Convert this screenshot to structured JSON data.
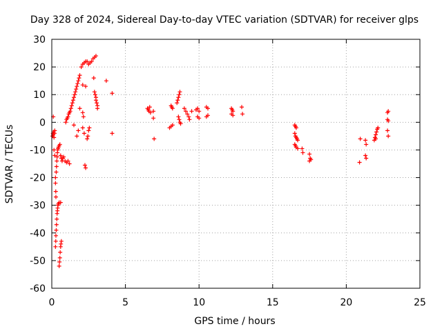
{
  "chart_data": {
    "type": "scatter",
    "title": "Day 328 of 2024, Sidereal Day-to-day VTEC variation (SDTVAR) for receiver glps",
    "xlabel": "GPS time / hours",
    "ylabel": "SDTVAR / TECUs",
    "xlim": [
      0,
      25
    ],
    "ylim": [
      -60,
      30
    ],
    "xticks": [
      0,
      5,
      10,
      15,
      20,
      25
    ],
    "yticks": [
      -60,
      -50,
      -40,
      -30,
      -20,
      -10,
      0,
      10,
      20,
      30
    ],
    "grid": true,
    "marker": "+",
    "color": "#ff0000",
    "series": [
      {
        "name": "SDTVAR",
        "points": [
          [
            0.05,
            -5
          ],
          [
            0.08,
            -4
          ],
          [
            0.1,
            -4.5
          ],
          [
            0.12,
            -3.5
          ],
          [
            0.15,
            -5.5
          ],
          [
            0.18,
            -4
          ],
          [
            0.2,
            -3
          ],
          [
            0.1,
            2
          ],
          [
            0.15,
            -10
          ],
          [
            0.2,
            -12
          ],
          [
            0.25,
            -22
          ],
          [
            0.27,
            -25
          ],
          [
            0.28,
            -27
          ],
          [
            0.25,
            -20
          ],
          [
            0.3,
            -18
          ],
          [
            0.32,
            -16
          ],
          [
            0.34,
            -14
          ],
          [
            0.36,
            -12.5
          ],
          [
            0.38,
            -11
          ],
          [
            0.4,
            -10
          ],
          [
            0.42,
            -9.5
          ],
          [
            0.45,
            -9
          ],
          [
            0.5,
            -8.5
          ],
          [
            0.55,
            -8
          ],
          [
            0.25,
            -45
          ],
          [
            0.27,
            -43
          ],
          [
            0.28,
            -41
          ],
          [
            0.3,
            -39
          ],
          [
            0.32,
            -37
          ],
          [
            0.34,
            -35
          ],
          [
            0.36,
            -33
          ],
          [
            0.38,
            -32
          ],
          [
            0.4,
            -31
          ],
          [
            0.42,
            -30
          ],
          [
            0.45,
            -29.5
          ],
          [
            0.5,
            -29
          ],
          [
            0.6,
            -29
          ],
          [
            0.5,
            -52
          ],
          [
            0.52,
            -50.5
          ],
          [
            0.55,
            -49
          ],
          [
            0.57,
            -47
          ],
          [
            0.6,
            -45
          ],
          [
            0.62,
            -44
          ],
          [
            0.65,
            -43
          ],
          [
            0.6,
            -12
          ],
          [
            0.65,
            -13
          ],
          [
            0.7,
            -14
          ],
          [
            0.75,
            -13
          ],
          [
            0.8,
            -12.5
          ],
          [
            0.9,
            -14
          ],
          [
            1.0,
            -14.5
          ],
          [
            1.1,
            -14
          ],
          [
            1.2,
            -15
          ],
          [
            0.95,
            0
          ],
          [
            1.0,
            1
          ],
          [
            1.05,
            1.5
          ],
          [
            1.1,
            2
          ],
          [
            1.15,
            3
          ],
          [
            1.2,
            3.5
          ],
          [
            1.25,
            4
          ],
          [
            1.3,
            5
          ],
          [
            1.35,
            6
          ],
          [
            1.4,
            7
          ],
          [
            1.45,
            8
          ],
          [
            1.5,
            9
          ],
          [
            1.55,
            10
          ],
          [
            1.6,
            11
          ],
          [
            1.65,
            12
          ],
          [
            1.7,
            13
          ],
          [
            1.75,
            14
          ],
          [
            1.8,
            15
          ],
          [
            1.85,
            16
          ],
          [
            1.9,
            17
          ],
          [
            1.7,
            -5
          ],
          [
            1.8,
            -3
          ],
          [
            1.9,
            5
          ],
          [
            1.5,
            -1
          ],
          [
            2.0,
            20
          ],
          [
            2.1,
            21
          ],
          [
            2.2,
            21.5
          ],
          [
            2.3,
            22
          ],
          [
            2.4,
            22
          ],
          [
            2.5,
            21
          ],
          [
            2.6,
            21.5
          ],
          [
            2.7,
            22
          ],
          [
            2.8,
            23
          ],
          [
            2.9,
            23.5
          ],
          [
            3.0,
            24
          ],
          [
            2.1,
            13.5
          ],
          [
            2.3,
            13
          ],
          [
            2.1,
            3.5
          ],
          [
            2.15,
            2
          ],
          [
            2.1,
            -2
          ],
          [
            2.2,
            -4
          ],
          [
            2.25,
            -15.5
          ],
          [
            2.3,
            -16.5
          ],
          [
            2.4,
            -6
          ],
          [
            2.45,
            -5
          ],
          [
            2.5,
            -3
          ],
          [
            2.55,
            -2
          ],
          [
            2.85,
            16
          ],
          [
            2.9,
            11
          ],
          [
            2.95,
            10
          ],
          [
            3.0,
            9
          ],
          [
            3.0,
            8
          ],
          [
            3.05,
            7
          ],
          [
            3.1,
            6
          ],
          [
            3.1,
            5
          ],
          [
            3.7,
            15
          ],
          [
            4.1,
            10.5
          ],
          [
            4.1,
            -4
          ],
          [
            6.5,
            5
          ],
          [
            6.55,
            4.5
          ],
          [
            6.6,
            4
          ],
          [
            6.65,
            5.5
          ],
          [
            6.7,
            3.5
          ],
          [
            6.9,
            4
          ],
          [
            6.9,
            1.5
          ],
          [
            6.95,
            -6
          ],
          [
            8.1,
            6
          ],
          [
            8.15,
            5.5
          ],
          [
            8.2,
            5
          ],
          [
            8.0,
            -2
          ],
          [
            8.1,
            -1.5
          ],
          [
            8.2,
            -1
          ],
          [
            8.5,
            7
          ],
          [
            8.55,
            8
          ],
          [
            8.6,
            9
          ],
          [
            8.65,
            10
          ],
          [
            8.7,
            11
          ],
          [
            8.6,
            2
          ],
          [
            8.65,
            1
          ],
          [
            8.7,
            0
          ],
          [
            8.75,
            -0.5
          ],
          [
            9.0,
            5
          ],
          [
            9.1,
            4
          ],
          [
            9.2,
            3
          ],
          [
            9.3,
            2
          ],
          [
            9.35,
            1
          ],
          [
            9.5,
            4
          ],
          [
            9.8,
            4.5
          ],
          [
            9.9,
            5
          ],
          [
            10.0,
            4
          ],
          [
            9.9,
            2
          ],
          [
            10.0,
            1.5
          ],
          [
            10.5,
            5.5
          ],
          [
            10.6,
            5
          ],
          [
            10.5,
            2
          ],
          [
            10.6,
            2.5
          ],
          [
            12.2,
            5
          ],
          [
            12.25,
            4.5
          ],
          [
            12.3,
            4
          ],
          [
            12.2,
            3
          ],
          [
            12.3,
            2.5
          ],
          [
            12.9,
            5.5
          ],
          [
            12.95,
            3
          ],
          [
            16.5,
            -1
          ],
          [
            16.55,
            -1.5
          ],
          [
            16.6,
            -2
          ],
          [
            16.5,
            -4
          ],
          [
            16.55,
            -5
          ],
          [
            16.6,
            -5.5
          ],
          [
            16.65,
            -6
          ],
          [
            16.7,
            -6.5
          ],
          [
            16.5,
            -8
          ],
          [
            16.55,
            -8.5
          ],
          [
            16.6,
            -9
          ],
          [
            16.7,
            -9.5
          ],
          [
            17.0,
            -9.5
          ],
          [
            17.05,
            -11
          ],
          [
            17.5,
            -11.5
          ],
          [
            17.55,
            -13
          ],
          [
            17.6,
            -13.5
          ],
          [
            17.5,
            -14
          ],
          [
            20.9,
            -14.5
          ],
          [
            20.95,
            -6
          ],
          [
            21.3,
            -6.5
          ],
          [
            21.35,
            -8
          ],
          [
            21.3,
            -12
          ],
          [
            21.35,
            -13
          ],
          [
            21.9,
            -6.5
          ],
          [
            21.95,
            -5.5
          ],
          [
            22.0,
            -4.5
          ],
          [
            22.05,
            -3.5
          ],
          [
            22.1,
            -2.5
          ],
          [
            22.15,
            -2
          ],
          [
            22.0,
            -6
          ],
          [
            22.8,
            3.5
          ],
          [
            22.85,
            4
          ],
          [
            22.8,
            1
          ],
          [
            22.85,
            0.5
          ],
          [
            22.8,
            -3
          ],
          [
            22.85,
            -5
          ]
        ]
      }
    ]
  }
}
